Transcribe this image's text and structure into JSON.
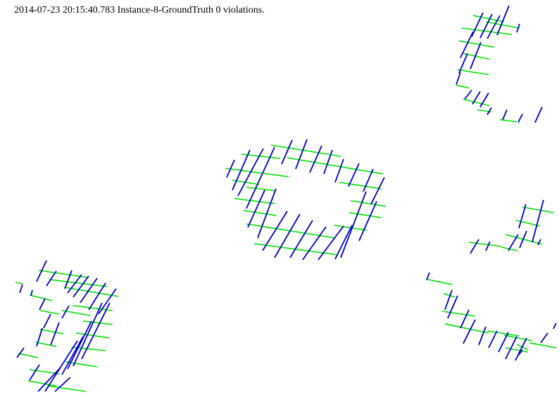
{
  "caption": {
    "timestamp": "2014-07-23 20:15:40.783",
    "instance": "Instance-8-GroundTruth",
    "violations": "0 violations."
  },
  "colors": {
    "background": "#ffffff",
    "wire_horizontal": "#00e000",
    "wire_vertical": "#0000cc"
  }
}
